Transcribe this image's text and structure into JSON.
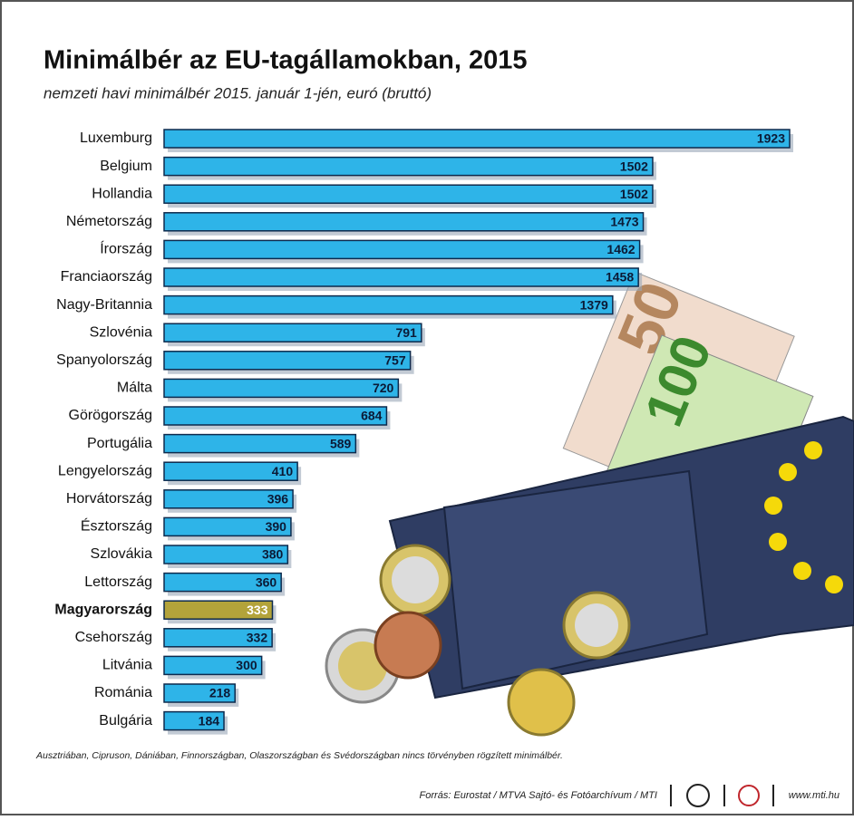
{
  "chart_data": {
    "type": "bar",
    "title": "Minimálbér az EU-tagállamokban, 2015",
    "subtitle": "nemzeti havi minimálbér 2015. január 1-jén, euró (bruttó)",
    "categories": [
      "Luxemburg",
      "Belgium",
      "Hollandia",
      "Németország",
      "Írország",
      "Franciaország",
      "Nagy-Britannia",
      "Szlovénia",
      "Spanyolország",
      "Málta",
      "Görögország",
      "Portugália",
      "Lengyelország",
      "Horvátország",
      "Észtország",
      "Szlovákia",
      "Lettország",
      "Magyarország",
      "Csehország",
      "Litvánia",
      "Románia",
      "Bulgária"
    ],
    "values": [
      1923,
      1502,
      1502,
      1473,
      1462,
      1458,
      1379,
      791,
      757,
      720,
      684,
      589,
      410,
      396,
      390,
      380,
      360,
      333,
      332,
      300,
      218,
      184
    ],
    "color": "#2eb4e8",
    "highlight": {
      "index": 17,
      "color": "#b3a33a"
    },
    "footnote": "Ausztriában, Cipruson, Dániában, Finnországban, Olaszországban és Svédországban nincs törvényben rögzített minimálbér.",
    "source": "Forrás: Eurostat / MTVA Sajtó- és Fotóarchívum / MTI",
    "website": "www.mti.hu"
  }
}
